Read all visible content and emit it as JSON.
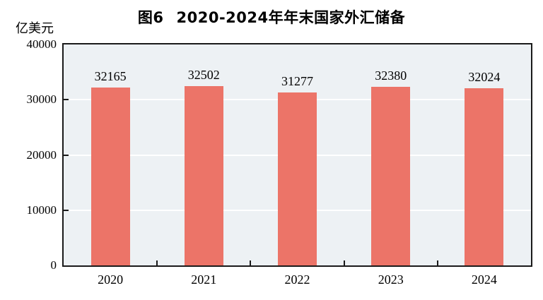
{
  "title": {
    "prefix": "图6",
    "text": "2020-2024年年末国家外汇储备"
  },
  "chart_data": {
    "type": "bar",
    "title": "图6 2020-2024年年末国家外汇储备",
    "categories": [
      "2020",
      "2021",
      "2022",
      "2023",
      "2024"
    ],
    "values": [
      32165,
      32502,
      31277,
      32380,
      32024
    ],
    "xlabel": "",
    "ylabel": "亿美元",
    "ylim": [
      0,
      40000
    ],
    "yticks": [
      0,
      10000,
      20000,
      30000,
      40000
    ],
    "grid": true,
    "legend": "none",
    "colors": {
      "bar_fill": "#ec7468",
      "plot_background": "#edf1f4",
      "gridline": "#ffffff",
      "frame": "#1a1a1a",
      "text": "#000000"
    }
  }
}
